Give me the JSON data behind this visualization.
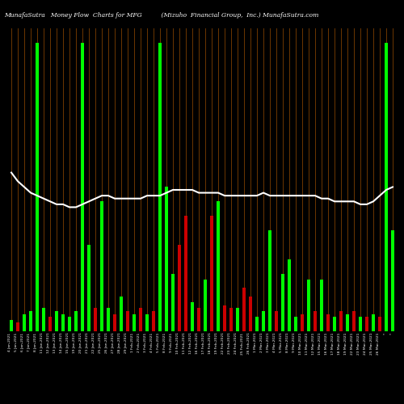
{
  "title": "MunafaSutra   Money Flow  Charts for MFG          (Mizuho  Financial Group,  Inc.) MunafaSutra.com",
  "bg_color": "#000000",
  "green_color": "#00FF00",
  "red_color": "#CC0000",
  "orange_color": "#8B4500",
  "line_color": "#FFFFFF",
  "dates": [
    "4 Jan,2021",
    "5 Jan,2021",
    "6 Jan,2021",
    "7 Jan,2021",
    "8 Jan,2021",
    "11 Jan,2021",
    "12 Jan,2021",
    "13 Jan,2021",
    "14 Jan,2021",
    "15 Jan,2021",
    "19 Jan,2021",
    "20 Jan,2021",
    "21 Jan,2021",
    "22 Jan,2021",
    "25 Jan,2021",
    "26 Jan,2021",
    "27 Jan,2021",
    "28 Jan,2021",
    "29 Jan,2021",
    "1 Feb,2021",
    "2 Feb,2021",
    "3 Feb,2021",
    "4 Feb,2021",
    "5 Feb,2021",
    "8 Feb,2021",
    "9 Feb,2021",
    "10 Feb,2021",
    "11 Feb,2021",
    "12 Feb,2021",
    "16 Feb,2021",
    "17 Feb,2021",
    "18 Feb,2021",
    "19 Feb,2021",
    "22 Feb,2021",
    "23 Feb,2021",
    "24 Feb,2021",
    "25 Feb,2021",
    "26 Feb,2021",
    "1 Mar,2021",
    "2 Mar,2021",
    "3 Mar,2021",
    "4 Mar,2021",
    "5 Mar,2021",
    "8 Mar,2021",
    "9 Mar,2021",
    "10 Mar,2021",
    "11 Mar,2021",
    "12 Mar,2021",
    "15 Mar,2021",
    "16 Mar,2021",
    "17 Mar,2021",
    "18 Mar,2021",
    "19 Mar,2021",
    "22 Mar,2021",
    "23 Mar,2021",
    "24 Mar,2021",
    "25 Mar,2021",
    "26 Mar,2021",
    "*",
    "*"
  ],
  "bar_values": [
    4,
    3,
    6,
    7,
    100,
    8,
    5,
    7,
    6,
    5,
    7,
    100,
    30,
    8,
    45,
    8,
    6,
    12,
    7,
    6,
    8,
    6,
    7,
    100,
    50,
    20,
    30,
    40,
    10,
    8,
    18,
    40,
    45,
    9,
    8,
    8,
    15,
    12,
    5,
    7,
    35,
    7,
    20,
    25,
    5,
    6,
    18,
    7,
    18,
    6,
    5,
    7,
    6,
    7,
    5,
    5,
    6,
    5,
    100,
    35
  ],
  "bar_colors": [
    "g",
    "r",
    "g",
    "g",
    "g",
    "g",
    "r",
    "g",
    "g",
    "g",
    "g",
    "g",
    "g",
    "r",
    "g",
    "g",
    "r",
    "g",
    "r",
    "g",
    "r",
    "g",
    "r",
    "g",
    "g",
    "g",
    "r",
    "r",
    "g",
    "r",
    "g",
    "r",
    "g",
    "r",
    "r",
    "g",
    "r",
    "r",
    "g",
    "g",
    "g",
    "r",
    "g",
    "g",
    "g",
    "r",
    "g",
    "r",
    "g",
    "r",
    "g",
    "r",
    "g",
    "r",
    "g",
    "r",
    "g",
    "r",
    "g",
    "g"
  ],
  "thin_bar_height": 100,
  "line_values": [
    55,
    52,
    50,
    48,
    47,
    46,
    45,
    44,
    44,
    43,
    43,
    44,
    45,
    46,
    47,
    47,
    46,
    46,
    46,
    46,
    46,
    47,
    47,
    47,
    48,
    49,
    49,
    49,
    49,
    48,
    48,
    48,
    48,
    47,
    47,
    47,
    47,
    47,
    47,
    48,
    47,
    47,
    47,
    47,
    47,
    47,
    47,
    47,
    46,
    46,
    45,
    45,
    45,
    45,
    44,
    44,
    45,
    47,
    49,
    50
  ]
}
